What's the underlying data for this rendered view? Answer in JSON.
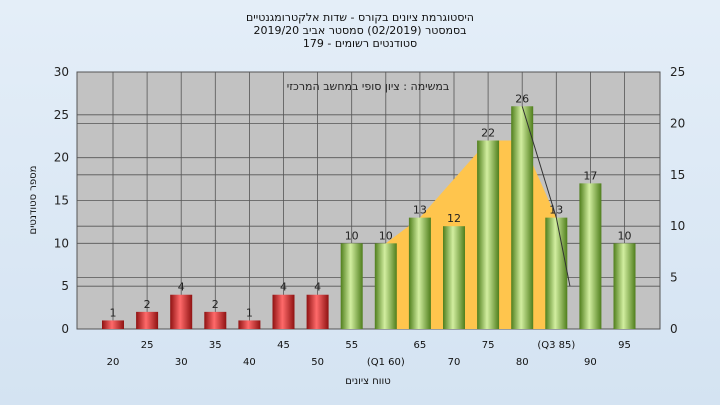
{
  "chart_data": {
    "type": "bar",
    "title": [
      "היסטוגרמת ציונים בקורס - שדות אלקטרומגנטיים",
      "בסמסטר  (02/2019)  סמסטר אביב 2019/20",
      "סטודנטים רשומים - 179"
    ],
    "annotation": "במשימה : ציון סופי במחשב המרכזי",
    "xlabel": "טווח ציונים",
    "ylabel": "מספר סטודנטים",
    "ylim": [
      0,
      30
    ],
    "ylim_right": [
      0,
      25
    ],
    "yticks": [
      0,
      5,
      10,
      15,
      20,
      25,
      30
    ],
    "yticks_right": [
      0,
      5,
      10,
      15,
      20,
      25
    ],
    "grid": true,
    "categories": [
      20,
      25,
      30,
      35,
      40,
      45,
      50,
      55,
      60,
      65,
      70,
      75,
      80,
      85,
      90,
      95
    ],
    "x_tick_labels": [
      "20",
      "25",
      "30",
      "35",
      "40",
      "45",
      "50",
      "55",
      "(Q1 60)",
      "65",
      "70",
      "75",
      "80",
      "(Q3 85)",
      "90",
      "95"
    ],
    "values": [
      1,
      2,
      4,
      2,
      1,
      4,
      4,
      10,
      10,
      13,
      12,
      22,
      26,
      13,
      17,
      10
    ],
    "bar_colors": {
      "fail": "#d42a2a",
      "pass": "#8fbe3c"
    },
    "pass_threshold": 55,
    "band": {
      "x": [
        60,
        65,
        75,
        80,
        85
      ],
      "y": [
        10,
        13,
        22,
        22,
        13
      ],
      "color": "#ffc54d"
    },
    "curve": {
      "x": [
        80,
        85,
        87
      ],
      "y": [
        26,
        13,
        5
      ]
    }
  }
}
